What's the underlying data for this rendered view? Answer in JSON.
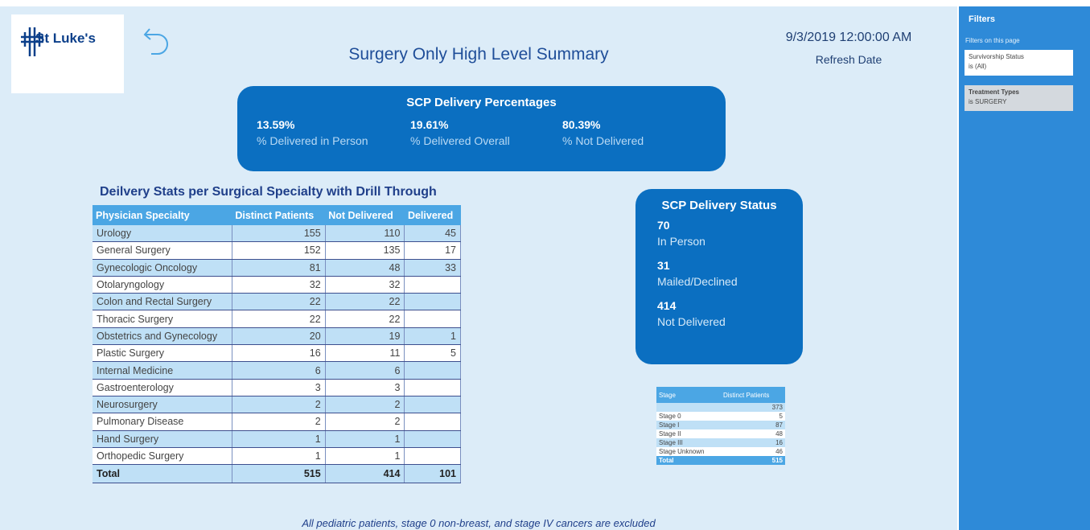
{
  "header": {
    "logo": "St Luke's",
    "title": "Surgery Only High Level Summary",
    "refresh_value": "9/3/2019 12:00:00 AM",
    "refresh_label": "Refresh Date"
  },
  "percentages_card": {
    "title": "SCP Delivery Percentages",
    "items": [
      {
        "value": "13.59%",
        "label": "% Delivered in Person"
      },
      {
        "value": "19.61%",
        "label": "% Delivered Overall"
      },
      {
        "value": "80.39%",
        "label": "% Not Delivered"
      }
    ]
  },
  "specialty_table": {
    "title": "Deilvery Stats per Surgical Specialty with Drill Through",
    "columns": [
      "Physician Specialty",
      "Distinct Patients",
      "Not Delivered",
      "Delivered"
    ],
    "rows": [
      [
        "Urology",
        155,
        110,
        45
      ],
      [
        "General Surgery",
        152,
        135,
        17
      ],
      [
        "Gynecologic Oncology",
        81,
        48,
        33
      ],
      [
        "Otolaryngology",
        32,
        32,
        null
      ],
      [
        "Colon and Rectal Surgery",
        22,
        22,
        null
      ],
      [
        "Thoracic Surgery",
        22,
        22,
        null
      ],
      [
        "Obstetrics and Gynecology",
        20,
        19,
        1
      ],
      [
        "Plastic Surgery",
        16,
        11,
        5
      ],
      [
        "Internal Medicine",
        6,
        6,
        null
      ],
      [
        "Gastroenterology",
        3,
        3,
        null
      ],
      [
        "Neurosurgery",
        2,
        2,
        null
      ],
      [
        "Pulmonary Disease",
        2,
        2,
        null
      ],
      [
        "Hand Surgery",
        1,
        1,
        null
      ],
      [
        "Orthopedic Surgery",
        1,
        1,
        null
      ]
    ],
    "total": [
      "Total",
      515,
      414,
      101
    ]
  },
  "status_card": {
    "title": "SCP Delivery Status",
    "items": [
      {
        "value": "70",
        "label": "In Person"
      },
      {
        "value": "31",
        "label": "Mailed/Declined"
      },
      {
        "value": "414",
        "label": "Not Delivered"
      }
    ]
  },
  "stage_table": {
    "columns": [
      "Stage",
      "Distinct Patients"
    ],
    "rows": [
      [
        null,
        373
      ],
      [
        "Stage 0",
        5
      ],
      [
        "Stage I",
        87
      ],
      [
        "Stage II",
        48
      ],
      [
        "Stage III",
        16
      ],
      [
        "Stage Unknown",
        46
      ]
    ],
    "total": [
      "Total",
      515
    ]
  },
  "footnote": "All pediatric patients, stage 0 non-breast, and stage IV cancers are excluded",
  "filters": {
    "title": "Filters",
    "subtitle": "Filters on this page",
    "cards": [
      {
        "name": "Survivorship Status",
        "value": "is (All)"
      },
      {
        "name": "Treatment Types",
        "value": "is SURGERY"
      }
    ]
  }
}
